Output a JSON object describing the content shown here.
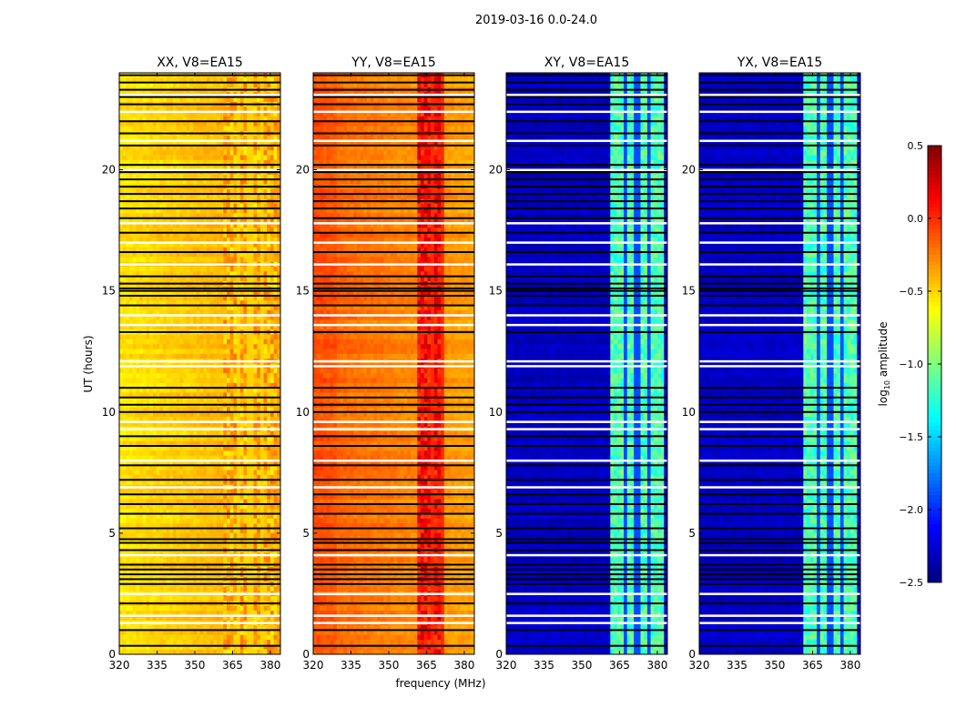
{
  "chart_data": {
    "type": "heatmap",
    "title": "2019-03-16 0.0-24.0",
    "xlabel": "frequency (MHz)",
    "ylabel": "UT (hours)",
    "xlim": [
      320,
      384
    ],
    "ylim": [
      0,
      24
    ],
    "xticks": [
      320,
      335,
      350,
      365,
      380
    ],
    "yticks": [
      0,
      5,
      10,
      15,
      20
    ],
    "xtick_labels": [
      "320",
      "335",
      "350",
      "365",
      "380"
    ],
    "ytick_labels": [
      "0",
      "5",
      "10",
      "15",
      "20"
    ],
    "colorbar": {
      "label_main": "log",
      "label_sub": "10",
      "label_rest": " amplitude",
      "range": [
        -2.5,
        0.5
      ],
      "ticks": [
        0.5,
        0.0,
        -0.5,
        -1.0,
        -1.5,
        -2.0,
        -2.5
      ],
      "tick_labels": [
        "0.5",
        "0.0",
        "−0.5",
        "−1.0",
        "−1.5",
        "−2.0",
        "−2.5"
      ],
      "colormap": "jet"
    },
    "panels": [
      {
        "title": "XX, V8=EA15",
        "base": -0.55,
        "right_slope": 0.2,
        "band_level": -0.4,
        "band_mhz": [
          362,
          382
        ]
      },
      {
        "title": "YY, V8=EA15",
        "base": -0.15,
        "right_slope": -0.2,
        "band_level": 0.1,
        "band_mhz": [
          362,
          372
        ]
      },
      {
        "title": "XY, V8=EA15",
        "base": -2.3,
        "right_slope": 0.0,
        "band_level": -1.15,
        "band_mhz": [
          362,
          382
        ]
      },
      {
        "title": "YX, V8=EA15",
        "base": -2.3,
        "right_slope": 0.0,
        "band_level": -1.15,
        "band_mhz": [
          362,
          382
        ]
      }
    ],
    "band_gaps_mhz": [
      367,
      372,
      377
    ],
    "flagged_black_hours": [
      0.35,
      1.0,
      2.1,
      2.9,
      3.1,
      3.3,
      3.5,
      3.7,
      4.3,
      4.6,
      4.75,
      5.2,
      5.8,
      6.2,
      6.6,
      7.2,
      7.8,
      8.6,
      9.0,
      10.0,
      10.3,
      10.6,
      11.0,
      13.3,
      14.4,
      14.8,
      15.0,
      15.1,
      15.3,
      15.6,
      16.6,
      17.4,
      18.0,
      18.4,
      18.7,
      19.0,
      19.3,
      19.6,
      19.9,
      20.2,
      21.0,
      21.5,
      22.0,
      22.7,
      23.0,
      23.3,
      23.6,
      23.9
    ],
    "flagged_white_hours": [
      1.3,
      1.6,
      2.5,
      4.1,
      6.9,
      8.0,
      9.3,
      9.6,
      11.9,
      12.1,
      13.6,
      14.0,
      16.1,
      17.0,
      17.8,
      20.0,
      21.2,
      22.4,
      23.1
    ]
  }
}
